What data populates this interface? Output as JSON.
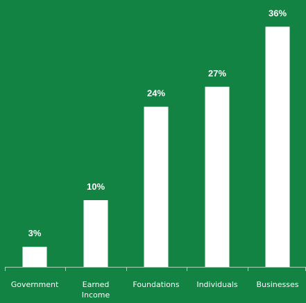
{
  "colors": {
    "background": "#138343",
    "bar": "#ffffff",
    "axis": "#a9d6b9",
    "label": "#ffffff"
  },
  "chart_data": {
    "type": "bar",
    "title": "",
    "xlabel": "",
    "ylabel": "",
    "ylim": [
      0,
      40
    ],
    "grid": false,
    "legend": "none",
    "categories": [
      "Government",
      "Earned\nIncome",
      "Foundations",
      "Individuals",
      "Businesses"
    ],
    "values": [
      3,
      10,
      24,
      27,
      36
    ],
    "data_labels": [
      "3%",
      "10%",
      "24%",
      "27%",
      "36%"
    ]
  }
}
